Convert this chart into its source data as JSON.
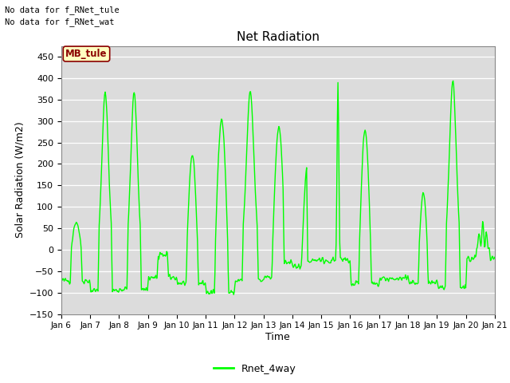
{
  "title": "Net Radiation",
  "ylabel": "Solar Radiation (W/m2)",
  "xlabel": "Time",
  "ylim": [
    -150,
    475
  ],
  "yticks": [
    -150,
    -100,
    -50,
    0,
    50,
    100,
    150,
    200,
    250,
    300,
    350,
    400,
    450
  ],
  "line_color": "#00FF00",
  "line_width": 1.0,
  "bg_color": "#DCDCDC",
  "fig_bg": "#FFFFFF",
  "no_data_text1": "No data for f_RNet_tule",
  "no_data_text2": "No data for f_RNet_wat",
  "mb_tule_label": "MB_tule",
  "legend_label": "Rnet_4way",
  "x_tick_labels": [
    "Jan 6",
    "Jan 7",
    "Jan 8",
    "Jan 9",
    "Jan 10",
    "Jan 11",
    "Jan 12",
    "Jan 13",
    "Jan 14",
    "Jan 15",
    "Jan 16",
    "Jan 17",
    "Jan 18",
    "Jan 19",
    "Jan 20",
    "Jan 21"
  ],
  "font_name": "DejaVu Sans Mono"
}
